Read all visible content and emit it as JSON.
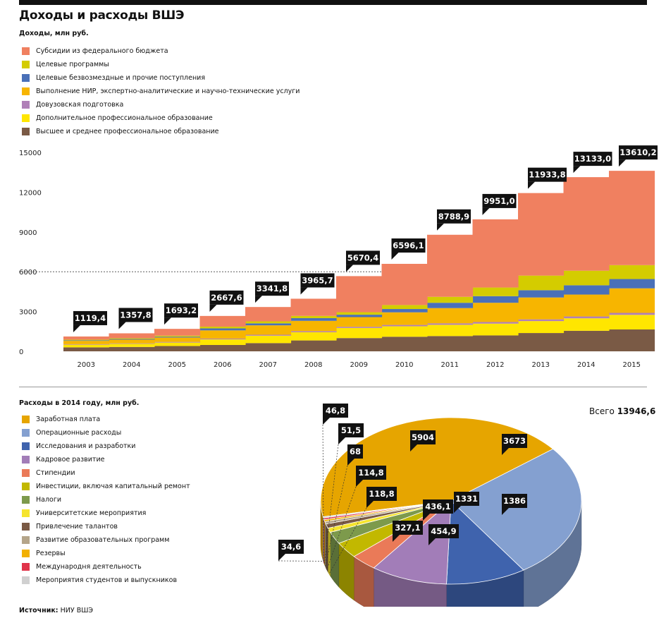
{
  "title": "Доходы и расходы ВШЭ",
  "income_subtitle": "Доходы, млн руб.",
  "expense_subtitle": "Расходы в 2014 году, млн руб.",
  "total_label": "Всего",
  "total_value": "13946,6",
  "source_label": "Источник:",
  "source_value": "НИУ ВШЭ",
  "chart_data": [
    {
      "type": "area",
      "stacked": true,
      "title": "Доходы, млн руб.",
      "x": [
        "2003",
        "2004",
        "2005",
        "2006",
        "2007",
        "2008",
        "2009",
        "2010",
        "2011",
        "2012",
        "2013",
        "2014",
        "2015"
      ],
      "ylim": [
        0,
        15000
      ],
      "yticks": [
        0,
        3000,
        6000,
        9000,
        12000,
        15000
      ],
      "grid": "dotted line at 6000",
      "legend_position": "top-left",
      "totals_labels": [
        "1119,4",
        "1357,8",
        "1693,2",
        "2667,6",
        "3341,8",
        "3965,7",
        "5670,4",
        "6596,1",
        "8788,9",
        "9951,0",
        "11933,8",
        "13133,0",
        "13610,2"
      ],
      "totals": [
        1119.4,
        1357.8,
        1693.2,
        2667.6,
        3341.8,
        3965.7,
        5670.4,
        6596.1,
        8788.9,
        9951.0,
        11933.8,
        13133.0,
        13610.2
      ],
      "series": [
        {
          "name": "Высшее и среднее профессиональное образование",
          "color": "#7a5a45",
          "values": [
            300,
            330,
            400,
            480,
            620,
            820,
            1000,
            1100,
            1150,
            1200,
            1380,
            1550,
            1650
          ]
        },
        {
          "name": "Дополнительное профессиональное образование",
          "color": "#ffe600",
          "values": [
            200,
            230,
            260,
            420,
            560,
            620,
            760,
            790,
            850,
            890,
            900,
            940,
            1100
          ]
        },
        {
          "name": "Довузовская подготовка",
          "color": "#b080b8",
          "values": [
            40,
            40,
            50,
            60,
            70,
            80,
            90,
            100,
            110,
            120,
            130,
            140,
            150
          ]
        },
        {
          "name": "Выполнение НИР, экспертно-аналитические и научно-технические услуги",
          "color": "#f7b500",
          "values": [
            250,
            280,
            330,
            620,
            710,
            780,
            730,
            950,
            1150,
            1450,
            1650,
            1650,
            1850
          ]
        },
        {
          "name": "Целевые безвозмездные и прочие поступления",
          "color": "#4a70b8",
          "values": [
            40,
            50,
            60,
            150,
            150,
            200,
            180,
            250,
            400,
            500,
            550,
            700,
            700
          ]
        },
        {
          "name": "Целевые программы",
          "color": "#d4cc00",
          "values": [
            50,
            60,
            80,
            130,
            150,
            170,
            190,
            300,
            450,
            650,
            1100,
            1100,
            1050
          ]
        },
        {
          "name": "Субсидии из федерального бюджета",
          "color": "#f08060",
          "values": [
            239.4,
            367.8,
            513.2,
            807.6,
            1081.8,
            1295.7,
            2720.4,
            3106.1,
            4678.9,
            5141.0,
            6223.8,
            7053.0,
            7110.2
          ]
        }
      ]
    },
    {
      "type": "pie",
      "title": "Расходы в 2014 году, млн руб.",
      "total": 13946.6,
      "legend_position": "left",
      "slices": [
        {
          "name": "Заработная плата",
          "value": 5904,
          "label": "5904",
          "color": "#e6a500"
        },
        {
          "name": "Операционные расходы",
          "value": 3673,
          "label": "3673",
          "color": "#84a0d0"
        },
        {
          "name": "Исследования и разработки",
          "value": 1386,
          "label": "1386",
          "color": "#3f63ad"
        },
        {
          "name": "Кадровое развитие",
          "value": 1331,
          "label": "1331",
          "color": "#a27db8"
        },
        {
          "name": "Стипендии",
          "value": 454.9,
          "label": "454,9",
          "color": "#ea7a58"
        },
        {
          "name": "Инвестиции, включая капитальный ремонт",
          "value": 436.1,
          "label": "436,1",
          "color": "#c2b800"
        },
        {
          "name": "Налоги",
          "value": 327.1,
          "label": "327,1",
          "color": "#7d9a4c"
        },
        {
          "name": "Университетские мероприятия",
          "value": 118.8,
          "label": "118,8",
          "color": "#f5e42e"
        },
        {
          "name": "Привлечение талантов",
          "value": 114.8,
          "label": "114,8",
          "color": "#7a5a45"
        },
        {
          "name": "Развитие образовательных программ",
          "value": 68,
          "label": "68",
          "color": "#b5a58a"
        },
        {
          "name": "Резервы",
          "value": 51.5,
          "label": "51,5",
          "color": "#f2b000"
        },
        {
          "name": "Международня деятельность",
          "value": 46.8,
          "label": "46,8",
          "color": "#e0344a"
        },
        {
          "name": "Мероприятия студентов и выпускников",
          "value": 34.6,
          "label": "34,6",
          "color": "#d0d0d0"
        }
      ]
    }
  ]
}
